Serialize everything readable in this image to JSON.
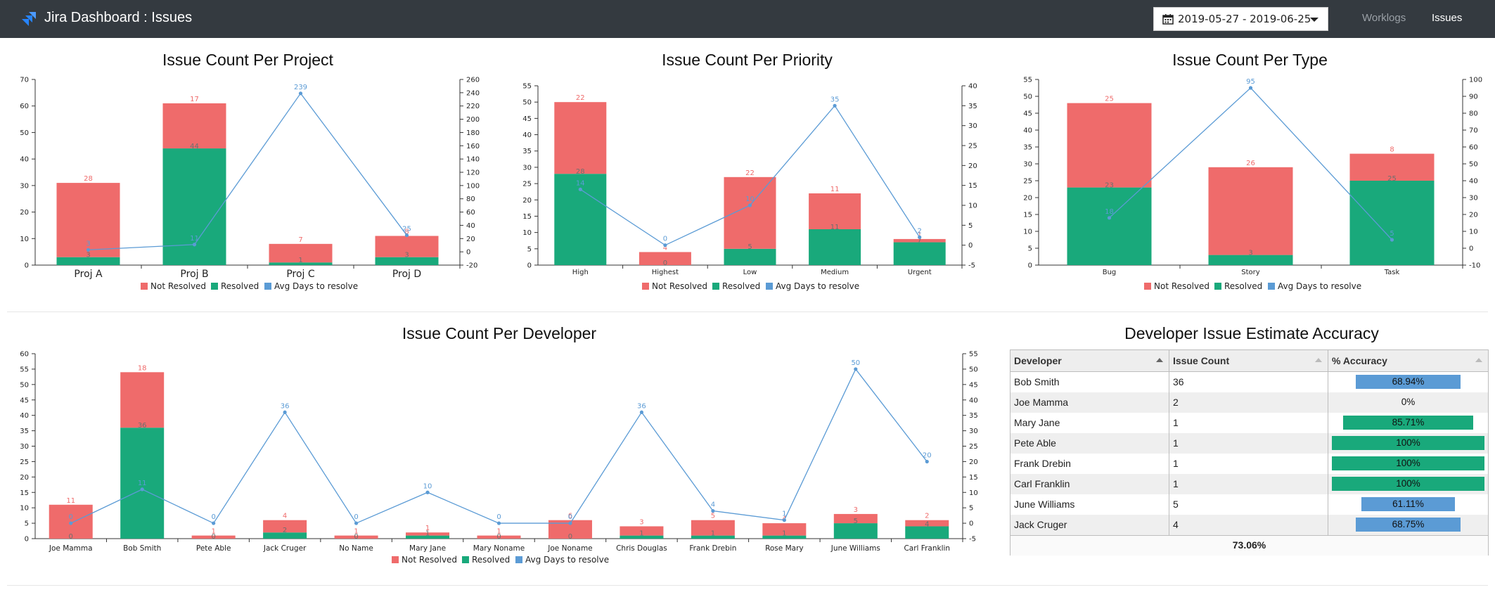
{
  "navbar": {
    "title": "Jira Dashboard : Issues",
    "date_range": "2019-05-27 - 2019-06-25",
    "links": [
      "Worklogs",
      "Issues"
    ]
  },
  "colors": {
    "not_resolved": "#ef6b6b",
    "resolved": "#19a97b",
    "avg_days": "#5b9bd5",
    "navbar": "#343a40"
  },
  "legend": [
    "Not Resolved",
    "Resolved",
    "Avg Days to resolve"
  ],
  "chart_data": [
    {
      "type": "bar",
      "title": "Issue Count Per Project",
      "categories": [
        "Proj A",
        "Proj B",
        "Proj C",
        "Proj D"
      ],
      "series": [
        {
          "name": "Not Resolved",
          "values": [
            28,
            17,
            7,
            8
          ]
        },
        {
          "name": "Resolved",
          "values": [
            3,
            44,
            1,
            3
          ]
        },
        {
          "name": "Avg Days to resolve",
          "values": [
            3,
            11,
            239,
            25
          ],
          "axis": "right"
        }
      ],
      "ylim": [
        0,
        70
      ],
      "y_ticks": [
        0,
        10,
        20,
        30,
        40,
        50,
        60,
        70
      ],
      "y2lim": [
        -20,
        260
      ],
      "y2_ticks": [
        -20,
        0,
        20,
        40,
        60,
        80,
        100,
        120,
        140,
        160,
        180,
        200,
        220,
        240,
        260
      ],
      "stacked": true,
      "legend_position": "bottom"
    },
    {
      "type": "bar",
      "title": "Issue Count Per Priority",
      "categories": [
        "High",
        "Highest",
        "Low",
        "Medium",
        "Urgent"
      ],
      "series": [
        {
          "name": "Not Resolved",
          "values": [
            22,
            4,
            22,
            11,
            1
          ]
        },
        {
          "name": "Resolved",
          "values": [
            28,
            0,
            5,
            11,
            7
          ]
        },
        {
          "name": "Avg Days to resolve",
          "values": [
            14,
            0,
            10,
            35,
            2
          ],
          "axis": "right"
        }
      ],
      "ylim": [
        0,
        55
      ],
      "y_ticks": [
        0,
        5,
        10,
        15,
        20,
        25,
        30,
        35,
        40,
        45,
        50,
        55
      ],
      "y2lim": [
        -5,
        40
      ],
      "y2_ticks": [
        -5,
        0,
        5,
        10,
        15,
        20,
        25,
        30,
        35,
        40
      ],
      "stacked": true,
      "legend_position": "bottom"
    },
    {
      "type": "bar",
      "title": "Issue Count Per Type",
      "categories": [
        "Bug",
        "Story",
        "Task"
      ],
      "series": [
        {
          "name": "Not Resolved",
          "values": [
            25,
            26,
            8
          ]
        },
        {
          "name": "Resolved",
          "values": [
            23,
            3,
            25
          ]
        },
        {
          "name": "Avg Days to resolve",
          "values": [
            18,
            95,
            5
          ],
          "axis": "right"
        }
      ],
      "ylim": [
        0,
        55
      ],
      "y_ticks": [
        0,
        5,
        10,
        15,
        20,
        25,
        30,
        35,
        40,
        45,
        50,
        55
      ],
      "y2lim": [
        -10,
        100
      ],
      "y2_ticks": [
        -10,
        0,
        10,
        20,
        30,
        40,
        50,
        60,
        70,
        80,
        90,
        100
      ],
      "stacked": true,
      "legend_position": "bottom"
    },
    {
      "type": "bar",
      "title": "Issue Count Per Developer",
      "categories": [
        "Joe Mamma",
        "Bob Smith",
        "Pete Able",
        "Jack Cruger",
        "No Name",
        "Mary Jane",
        "Mary Noname",
        "Joe Noname",
        "Chris Douglas",
        "Frank Drebin",
        "Rose Mary",
        "June Williams",
        "Carl Franklin"
      ],
      "series": [
        {
          "name": "Not Resolved",
          "values": [
            11,
            18,
            1,
            4,
            1,
            1,
            1,
            6,
            3,
            5,
            4,
            3,
            2
          ]
        },
        {
          "name": "Resolved",
          "values": [
            0,
            36,
            0,
            2,
            0,
            1,
            0,
            0,
            1,
            1,
            1,
            5,
            4
          ]
        },
        {
          "name": "Avg Days to resolve",
          "values": [
            0,
            11,
            0,
            36,
            0,
            10,
            0,
            0,
            36,
            4,
            1,
            50,
            20
          ],
          "axis": "right"
        }
      ],
      "ylim": [
        0,
        60
      ],
      "y_ticks": [
        0,
        5,
        10,
        15,
        20,
        25,
        30,
        35,
        40,
        45,
        50,
        55,
        60
      ],
      "y2lim": [
        -5,
        55
      ],
      "y2_ticks": [
        -5,
        0,
        5,
        10,
        15,
        20,
        25,
        30,
        35,
        40,
        45,
        50,
        55
      ],
      "stacked": true,
      "legend_position": "bottom"
    }
  ],
  "accuracy_table": {
    "title": "Developer Issue Estimate Accuracy",
    "headers": [
      "Developer",
      "Issue Count",
      "% Accuracy"
    ],
    "rows": [
      {
        "developer": "Bob Smith",
        "count": "36",
        "accuracy": "68.94%",
        "value": 68.94,
        "color": "#5b9bd5"
      },
      {
        "developer": "Joe Mamma",
        "count": "2",
        "accuracy": "0%",
        "value": 0,
        "color": "#5b9bd5"
      },
      {
        "developer": "Mary Jane",
        "count": "1",
        "accuracy": "85.71%",
        "value": 85.71,
        "color": "#19a97b"
      },
      {
        "developer": "Pete Able",
        "count": "1",
        "accuracy": "100%",
        "value": 100,
        "color": "#19a97b"
      },
      {
        "developer": "Frank Drebin",
        "count": "1",
        "accuracy": "100%",
        "value": 100,
        "color": "#19a97b"
      },
      {
        "developer": "Carl Franklin",
        "count": "1",
        "accuracy": "100%",
        "value": 100,
        "color": "#19a97b"
      },
      {
        "developer": "June Williams",
        "count": "5",
        "accuracy": "61.11%",
        "value": 61.11,
        "color": "#5b9bd5"
      },
      {
        "developer": "Jack Cruger",
        "count": "4",
        "accuracy": "68.75%",
        "value": 68.75,
        "color": "#5b9bd5"
      }
    ],
    "total": "73.06%"
  }
}
